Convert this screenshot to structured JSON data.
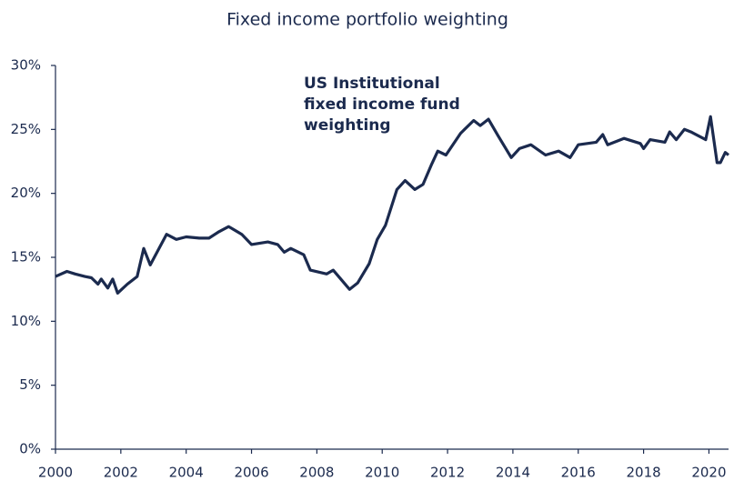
{
  "chart_data": {
    "type": "line",
    "title": "Fixed income portfolio weighting",
    "annotation": [
      "US Institutional",
      "fixed income fund",
      "weighting"
    ],
    "x": [
      2000.0,
      2000.35,
      2000.6,
      2000.9,
      2001.1,
      2001.3,
      2001.4,
      2001.6,
      2001.75,
      2001.9,
      2002.2,
      2002.5,
      2002.7,
      2002.9,
      2003.4,
      2003.7,
      2004.0,
      2004.4,
      2004.7,
      2005.0,
      2005.3,
      2005.7,
      2006.0,
      2006.5,
      2006.8,
      2007.0,
      2007.2,
      2007.6,
      2007.8,
      2008.3,
      2008.5,
      2009.0,
      2009.25,
      2009.6,
      2009.85,
      2010.1,
      2010.45,
      2010.7,
      2011.0,
      2011.25,
      2011.5,
      2011.7,
      2011.95,
      2012.4,
      2012.8,
      2013.0,
      2013.25,
      2013.55,
      2013.95,
      2014.2,
      2014.55,
      2015.0,
      2015.4,
      2015.75,
      2016.0,
      2016.55,
      2016.75,
      2016.9,
      2017.4,
      2017.9,
      2018.0,
      2018.2,
      2018.65,
      2018.8,
      2019.0,
      2019.25,
      2019.45,
      2019.9,
      2020.05,
      2020.25,
      2020.35,
      2020.5,
      2020.6
    ],
    "series": [
      {
        "name": "US Institutional fixed income fund weighting",
        "color": "#1b2a4e",
        "values": [
          13.5,
          13.9,
          13.7,
          13.5,
          13.4,
          12.9,
          13.3,
          12.6,
          13.3,
          12.2,
          12.9,
          13.5,
          15.7,
          14.4,
          16.8,
          16.4,
          16.6,
          16.5,
          16.5,
          17.0,
          17.4,
          16.8,
          16.0,
          16.2,
          16.0,
          15.4,
          15.7,
          15.2,
          14.0,
          13.7,
          14.0,
          12.5,
          13.0,
          14.5,
          16.4,
          17.5,
          20.3,
          21.0,
          20.3,
          20.7,
          22.2,
          23.3,
          23.0,
          24.7,
          25.7,
          25.3,
          25.8,
          24.5,
          22.8,
          23.5,
          23.8,
          23.0,
          23.3,
          22.8,
          23.8,
          24.0,
          24.6,
          23.8,
          24.3,
          23.9,
          23.5,
          24.2,
          24.0,
          24.8,
          24.2,
          25.0,
          24.8,
          24.2,
          26.0,
          22.4,
          22.4,
          23.2,
          23.0
        ]
      }
    ],
    "xlim": [
      2000,
      2020.6
    ],
    "xticks": [
      2000,
      2002,
      2004,
      2006,
      2008,
      2010,
      2012,
      2014,
      2016,
      2018,
      2020
    ],
    "ylim": [
      0,
      30
    ],
    "yticks": [
      {
        "value": 0,
        "label": "0%"
      },
      {
        "value": 5,
        "label": "5%"
      },
      {
        "value": 10,
        "label": "10%"
      },
      {
        "value": 15,
        "label": "15%"
      },
      {
        "value": 20,
        "label": "20%"
      },
      {
        "value": 25,
        "label": "25%"
      },
      {
        "value": 30,
        "label": "30%"
      }
    ]
  }
}
